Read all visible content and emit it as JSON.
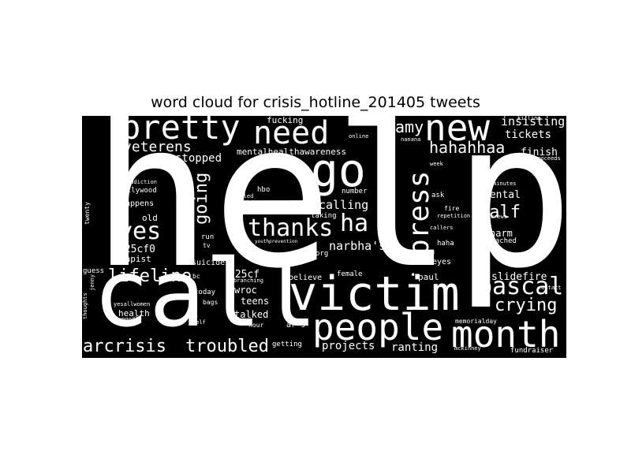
{
  "title": "word cloud for crisis_hotline_201405 tweets",
  "colors": {
    "background": "#000000",
    "words": "#ffffff",
    "page": "#ffffff"
  },
  "words": {
    "help": "help",
    "call": "call",
    "victim": "victim",
    "people": "people",
    "month": "month",
    "pretty": "pretty",
    "need": "need",
    "new": "new",
    "go": "go",
    "press": "press",
    "thanks": "thanks",
    "ha": "ha",
    "yes": "yes",
    "pascal": "pascal",
    "lifeline": "lifeline",
    "arcrisis": "arcrisis",
    "troubled": "troubled",
    "going": "going",
    "veterens": "veterens",
    "hahahhaa": "hahahhaa",
    "crying": "crying",
    "half": "half",
    "amy": "amy",
    "insisting": "insisting",
    "tickets": "tickets",
    "finish": "finish",
    "stopped": "stopped",
    "calling": "calling",
    "narbhas": "narbha's",
    "mental": "mental",
    "harm": "harm",
    "slidefire": "slidefire",
    "ranting": "ranting",
    "projects": "projects",
    "talked": "talked",
    "teens": "teens",
    "wroc": "wroc",
    "u25cf0": "u25cf0",
    "u25cf": "u25cf",
    "rapist": "rapist",
    "old": "old",
    "happens": "happens",
    "hollywood": "hollywood",
    "health": "health",
    "mentalhealthawareness": "mentalhealthawareness",
    "fucking": "fucking",
    "hbo": "hbo",
    "number": "number",
    "suicide": "suicide",
    "today": "today",
    "bags": "bags",
    "paul": "paul",
    "female": "female",
    "believe": "believe",
    "eyes": "eyes",
    "haha": "haha",
    "reached": "reached",
    "fire": "fire",
    "ask": "ask",
    "twenty": "twenty",
    "guess": "guess",
    "run": "run",
    "tv": "tv",
    "org": "org",
    "getting": "getting",
    "hour": "hour",
    "ars": "ar's",
    "addiction": "addiction",
    "fundraiser": "fundraiser",
    "memorialday": "memorialday",
    "minutes": "minutes",
    "proceeds": "proceeds",
    "killing": "killing",
    "repetition": "repetition",
    "callers": "callers",
    "taking": "taking",
    "contact": "contact",
    "branching": "branching",
    "jenny": "jenny",
    "thoughts": "thoughts",
    "yesallwomen": "yesallwomen",
    "ungodly": "ungodly",
    "bc": "bc",
    "self": "self",
    "youthprevention": "youthprevention",
    "called": "called",
    "week": "week",
    "online": "online",
    "nanana": "nanana",
    "crews": "crews",
    "mckinney": "mckinney",
    "dot": "•"
  }
}
